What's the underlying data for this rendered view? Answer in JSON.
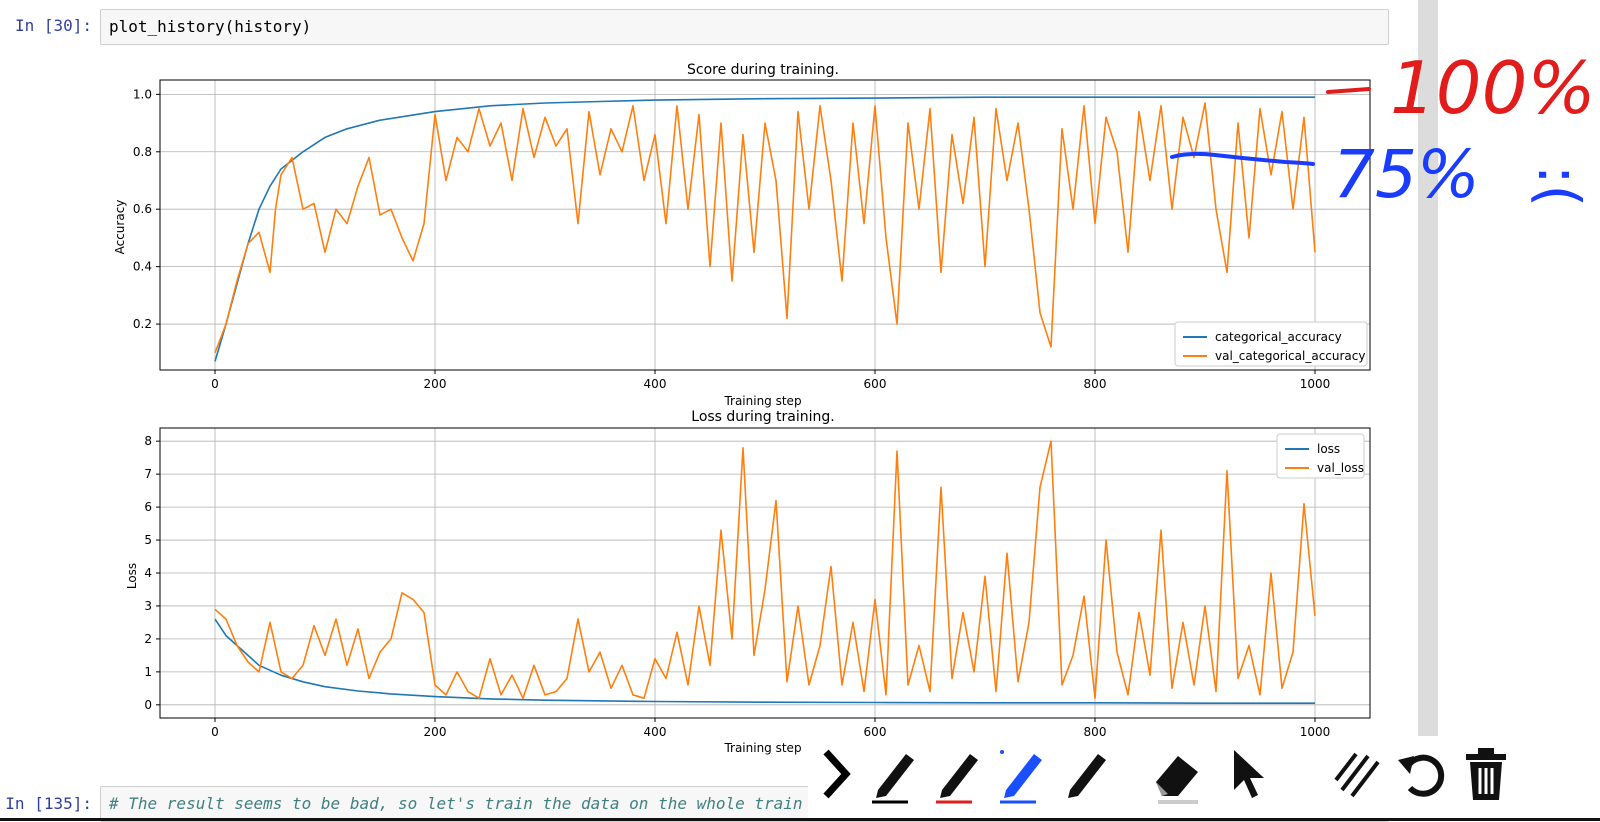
{
  "cells": [
    {
      "prompt": "In [30]:",
      "code": "plot_history(history)"
    },
    {
      "prompt": "In [135]:",
      "code": "# The result seems to be bad, so let's train the data on the whole train dataset"
    }
  ],
  "charts_text": {
    "top_title": "Score during training.",
    "top_ylabel": "Accuracy",
    "top_xlabel": "Training step",
    "bottom_title": "Loss during training.",
    "bottom_ylabel": "Loss",
    "bottom_xlabel": "Training step"
  },
  "chart_data": [
    {
      "type": "line",
      "title": "Score during training.",
      "xlabel": "Training step",
      "ylabel": "Accuracy",
      "xlim": [
        -50,
        1050
      ],
      "ylim": [
        0.04,
        1.05
      ],
      "xticks": [
        0,
        200,
        400,
        600,
        800,
        1000
      ],
      "yticks": [
        0.2,
        0.4,
        0.6,
        0.8,
        1.0
      ],
      "grid": true,
      "legend_position": "lower-right",
      "series": [
        {
          "name": "categorical_accuracy",
          "color": "#1f77b4",
          "x": [
            0,
            10,
            20,
            30,
            40,
            50,
            60,
            80,
            100,
            120,
            150,
            200,
            250,
            300,
            350,
            400,
            500,
            600,
            700,
            800,
            900,
            1000
          ],
          "y": [
            0.07,
            0.2,
            0.34,
            0.48,
            0.6,
            0.68,
            0.74,
            0.8,
            0.85,
            0.88,
            0.91,
            0.94,
            0.96,
            0.97,
            0.975,
            0.98,
            0.985,
            0.987,
            0.99,
            0.99,
            0.99,
            0.99
          ]
        },
        {
          "name": "val_categorical_accuracy",
          "color": "#ff7f0e",
          "x": [
            0,
            10,
            20,
            30,
            40,
            50,
            55,
            60,
            70,
            80,
            90,
            100,
            110,
            120,
            130,
            140,
            150,
            160,
            170,
            180,
            190,
            200,
            210,
            220,
            230,
            240,
            250,
            260,
            270,
            280,
            290,
            300,
            310,
            320,
            330,
            340,
            350,
            360,
            370,
            380,
            390,
            400,
            410,
            420,
            430,
            440,
            450,
            460,
            470,
            480,
            490,
            500,
            510,
            520,
            530,
            540,
            550,
            560,
            570,
            580,
            590,
            600,
            610,
            620,
            630,
            640,
            650,
            660,
            670,
            680,
            690,
            700,
            710,
            720,
            730,
            740,
            750,
            760,
            770,
            780,
            790,
            800,
            810,
            820,
            830,
            840,
            850,
            860,
            870,
            880,
            890,
            900,
            910,
            920,
            930,
            940,
            950,
            960,
            970,
            980,
            990,
            1000
          ],
          "y": [
            0.1,
            0.2,
            0.35,
            0.48,
            0.52,
            0.38,
            0.6,
            0.72,
            0.78,
            0.6,
            0.62,
            0.45,
            0.6,
            0.55,
            0.68,
            0.78,
            0.58,
            0.6,
            0.5,
            0.42,
            0.55,
            0.93,
            0.7,
            0.85,
            0.8,
            0.95,
            0.82,
            0.9,
            0.7,
            0.95,
            0.78,
            0.92,
            0.82,
            0.88,
            0.55,
            0.94,
            0.72,
            0.88,
            0.8,
            0.96,
            0.7,
            0.86,
            0.55,
            0.96,
            0.6,
            0.93,
            0.4,
            0.9,
            0.35,
            0.86,
            0.45,
            0.9,
            0.7,
            0.22,
            0.94,
            0.6,
            0.96,
            0.7,
            0.35,
            0.9,
            0.55,
            0.96,
            0.5,
            0.2,
            0.9,
            0.6,
            0.95,
            0.38,
            0.86,
            0.62,
            0.92,
            0.4,
            0.95,
            0.7,
            0.9,
            0.6,
            0.24,
            0.12,
            0.88,
            0.6,
            0.96,
            0.55,
            0.92,
            0.8,
            0.45,
            0.94,
            0.7,
            0.96,
            0.6,
            0.92,
            0.78,
            0.97,
            0.6,
            0.38,
            0.9,
            0.5,
            0.95,
            0.72,
            0.94,
            0.6,
            0.92,
            0.45
          ]
        }
      ]
    },
    {
      "type": "line",
      "title": "Loss during training.",
      "xlabel": "Training step",
      "ylabel": "Loss",
      "xlim": [
        -50,
        1050
      ],
      "ylim": [
        -0.4,
        8.4
      ],
      "xticks": [
        0,
        200,
        400,
        600,
        800,
        1000
      ],
      "yticks": [
        0,
        1,
        2,
        3,
        4,
        5,
        6,
        7,
        8
      ],
      "grid": true,
      "legend_position": "upper-right",
      "series": [
        {
          "name": "loss",
          "color": "#1f77b4",
          "x": [
            0,
            10,
            20,
            30,
            40,
            60,
            80,
            100,
            130,
            160,
            200,
            250,
            300,
            400,
            500,
            600,
            700,
            800,
            900,
            1000
          ],
          "y": [
            2.6,
            2.1,
            1.8,
            1.5,
            1.2,
            0.9,
            0.7,
            0.55,
            0.42,
            0.33,
            0.25,
            0.18,
            0.14,
            0.1,
            0.08,
            0.07,
            0.06,
            0.06,
            0.05,
            0.05
          ]
        },
        {
          "name": "val_loss",
          "color": "#ff7f0e",
          "x": [
            0,
            10,
            20,
            30,
            40,
            50,
            60,
            70,
            80,
            90,
            100,
            110,
            120,
            130,
            140,
            150,
            160,
            170,
            180,
            190,
            200,
            210,
            220,
            230,
            240,
            250,
            260,
            270,
            280,
            290,
            300,
            310,
            320,
            330,
            340,
            350,
            360,
            370,
            380,
            390,
            400,
            410,
            420,
            430,
            440,
            450,
            460,
            470,
            480,
            490,
            500,
            510,
            520,
            530,
            540,
            550,
            560,
            570,
            580,
            590,
            600,
            610,
            620,
            630,
            640,
            650,
            660,
            670,
            680,
            690,
            700,
            710,
            720,
            730,
            740,
            750,
            760,
            770,
            780,
            790,
            800,
            810,
            820,
            830,
            840,
            850,
            860,
            870,
            880,
            890,
            900,
            910,
            920,
            930,
            940,
            950,
            960,
            970,
            980,
            990,
            1000
          ],
          "y": [
            2.9,
            2.6,
            1.8,
            1.3,
            1.0,
            2.5,
            1.0,
            0.8,
            1.2,
            2.4,
            1.5,
            2.6,
            1.2,
            2.3,
            0.8,
            1.6,
            2.0,
            3.4,
            3.2,
            2.8,
            0.6,
            0.3,
            1.0,
            0.4,
            0.2,
            1.4,
            0.3,
            0.9,
            0.2,
            1.2,
            0.3,
            0.4,
            0.8,
            2.6,
            1.0,
            1.6,
            0.5,
            1.2,
            0.3,
            0.2,
            1.4,
            0.8,
            2.2,
            0.6,
            3.0,
            1.2,
            5.3,
            2.0,
            7.8,
            1.5,
            3.5,
            6.2,
            0.7,
            3.0,
            0.6,
            1.8,
            4.2,
            0.6,
            2.5,
            0.4,
            3.2,
            0.3,
            7.7,
            0.6,
            1.8,
            0.4,
            6.6,
            0.8,
            2.8,
            1.0,
            3.9,
            0.4,
            4.6,
            0.7,
            2.5,
            6.6,
            8.0,
            0.6,
            1.5,
            3.3,
            0.2,
            5.0,
            1.6,
            0.3,
            2.8,
            0.9,
            5.3,
            0.5,
            2.5,
            0.6,
            3.0,
            0.4,
            7.1,
            0.8,
            1.8,
            0.3,
            4.0,
            0.5,
            1.6,
            6.1,
            2.7
          ]
        }
      ]
    }
  ],
  "annotations": {
    "text_100": "100%",
    "text_75": "75%",
    "sad_face": ":("
  },
  "toolbar": {
    "tools": [
      {
        "name": "chevron-right-icon",
        "color": "#000000"
      },
      {
        "name": "pen-black-icon",
        "color": "#000000"
      },
      {
        "name": "pen-red-icon",
        "color": "#e21b1b"
      },
      {
        "name": "pen-blue-icon",
        "color": "#1a4fff"
      },
      {
        "name": "pen-white-icon",
        "color": "#ffffff"
      },
      {
        "name": "eraser-icon",
        "color": "#000000"
      },
      {
        "name": "pointer-icon",
        "color": "#000000"
      },
      {
        "name": "clear-lines-icon",
        "color": "#000000"
      },
      {
        "name": "undo-icon",
        "color": "#000000"
      },
      {
        "name": "trash-icon",
        "color": "#000000"
      }
    ]
  }
}
